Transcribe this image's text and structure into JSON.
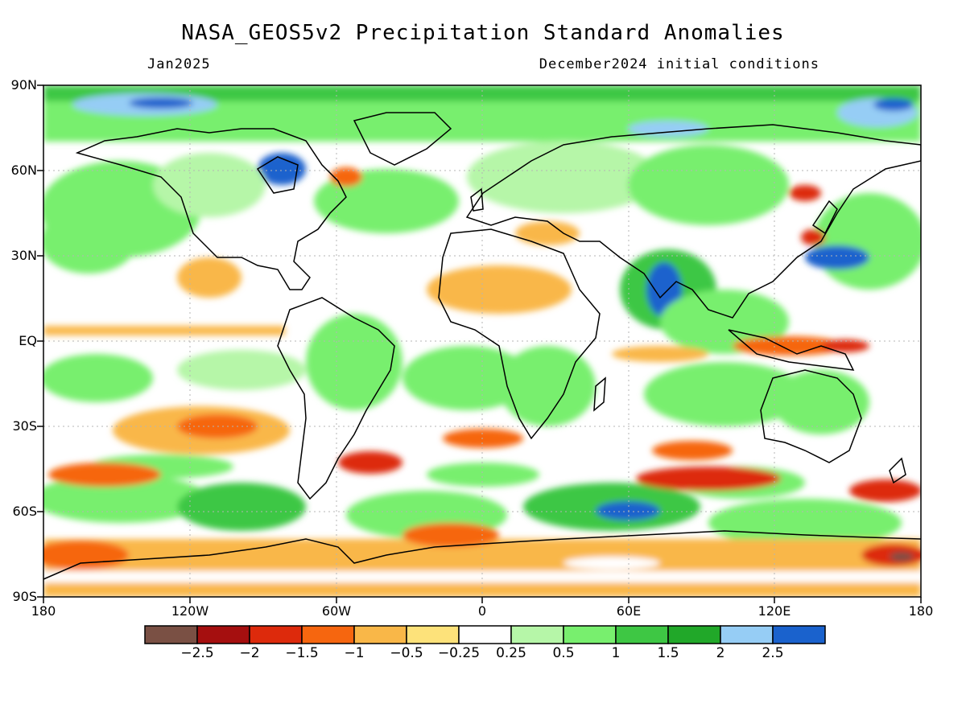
{
  "title": "NASA_GEOS5v2 Precipitation Standard Anomalies",
  "valid_month": "Jan2025",
  "init_conditions": "December2024 initial conditions",
  "lat_labels": [
    "90N",
    "60N",
    "30N",
    "EQ",
    "30S",
    "60S",
    "90S"
  ],
  "lon_labels": [
    "180",
    "120W",
    "60W",
    "0",
    "60E",
    "120E",
    "180"
  ],
  "legend": {
    "colors": [
      "#7a5044",
      "#a50f0f",
      "#dd2a0c",
      "#f6660f",
      "#f9b748",
      "#fde27a",
      "#ffffff",
      "#b6f6a8",
      "#78ef6e",
      "#3ec744",
      "#21a829",
      "#96cdf5",
      "#1a62cd"
    ],
    "labels": [
      "−2.5",
      "−2",
      "−1.5",
      "−1",
      "−0.5",
      "−0.25",
      "0.25",
      "0.5",
      "1",
      "1.5",
      "2",
      "2.5"
    ]
  },
  "map_layers": {
    "ocean_base": "#ffffff",
    "land_line": "#000000",
    "grid_line": "#b4b4b4"
  }
}
